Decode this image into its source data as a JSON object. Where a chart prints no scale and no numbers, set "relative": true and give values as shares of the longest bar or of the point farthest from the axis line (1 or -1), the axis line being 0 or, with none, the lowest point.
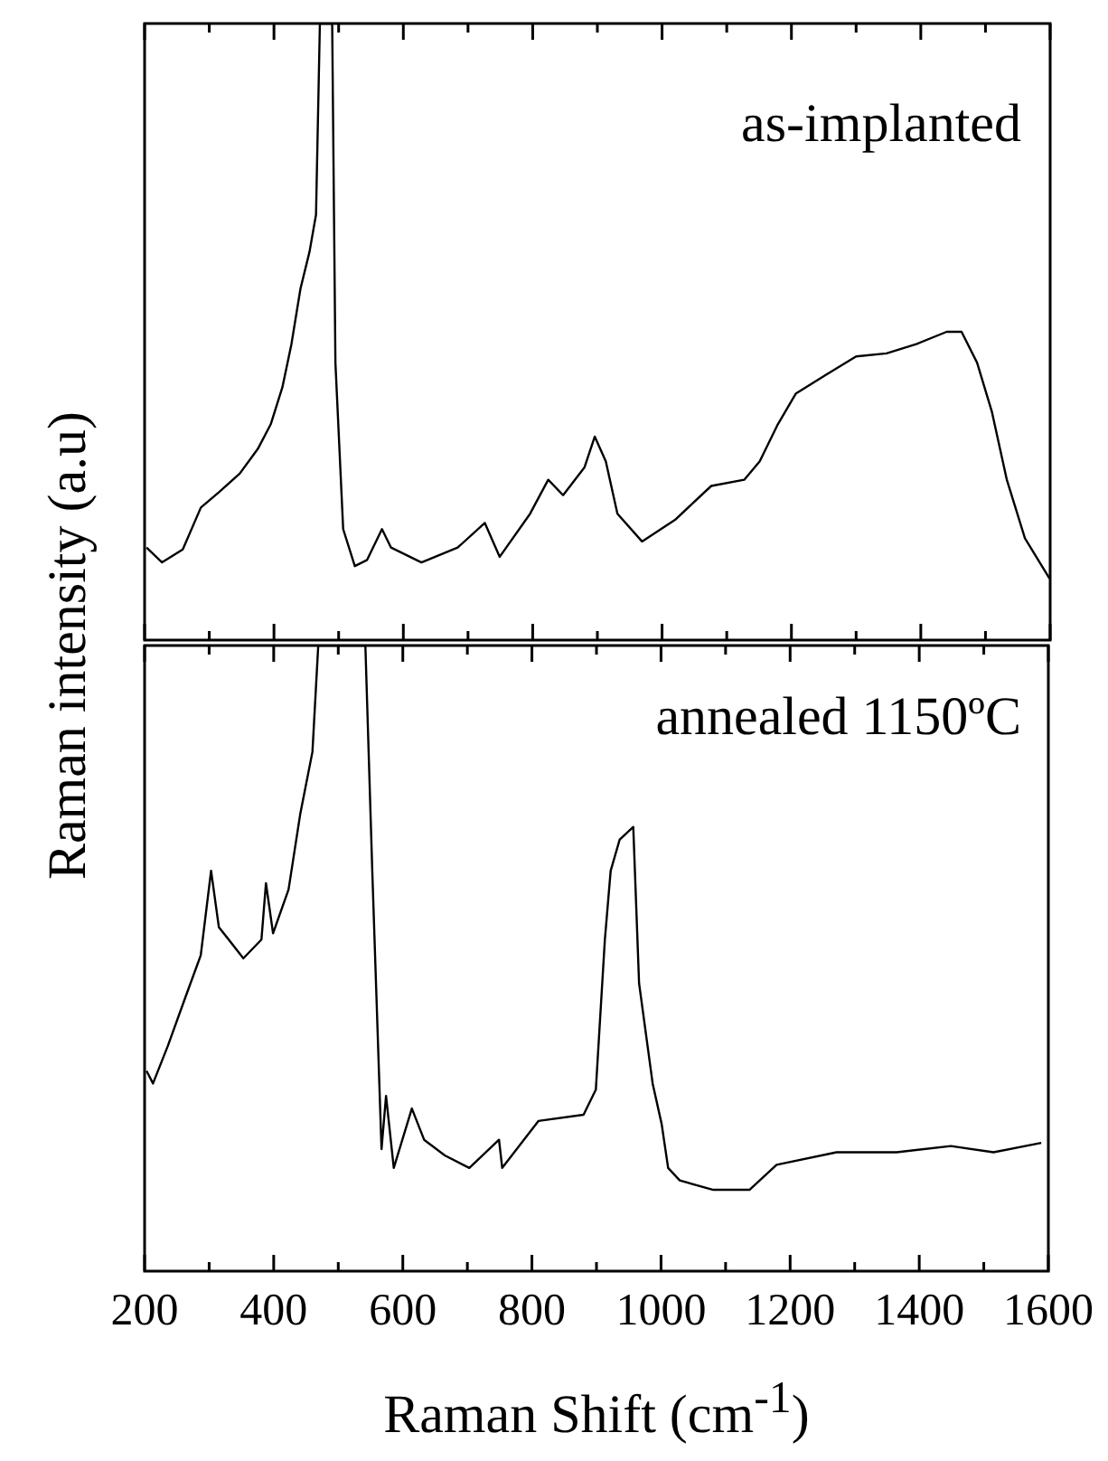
{
  "chart_data": [
    {
      "type": "line",
      "relative": true,
      "ylabel": "Raman intensity (a.u)",
      "annotations": [
        "as-implanted"
      ],
      "tick_labels": false,
      "grid": false,
      "legend": false,
      "marker": "none",
      "xlim": [
        200,
        1600
      ],
      "xticks": [
        200,
        {
          "value": 300,
          "label": null
        },
        400,
        {
          "value": 500,
          "label": null
        },
        600,
        {
          "value": 700,
          "label": null
        },
        800,
        {
          "value": 900,
          "label": null
        },
        1000,
        {
          "value": 1100,
          "label": null
        },
        1200,
        {
          "value": 1300,
          "label": null
        },
        1400,
        {
          "value": 1500,
          "label": null
        },
        1600
      ],
      "series": [
        {
          "color": "#000000",
          "x": [
            203,
            227,
            259,
            287,
            315,
            347,
            375,
            395,
            413,
            427,
            441,
            455,
            465,
            471,
            490,
            495,
            507,
            525,
            544,
            567,
            581,
            628,
            684,
            726,
            749,
            796,
            824,
            847,
            880,
            896,
            913,
            931,
            969,
            1020,
            1076,
            1127,
            1151,
            1179,
            1207,
            1253,
            1300,
            1347,
            1393,
            1440,
            1463,
            1487,
            1510,
            1533,
            1561,
            1599
          ],
          "values": [
            0.15,
            0.126,
            0.147,
            0.215,
            0.24,
            0.27,
            0.31,
            0.35,
            0.41,
            0.48,
            0.57,
            0.63,
            0.69,
            1,
            1,
            0.45,
            0.18,
            0.12,
            0.13,
            0.18,
            0.15,
            0.126,
            0.15,
            0.19,
            0.135,
            0.205,
            0.26,
            0.235,
            0.28,
            0.33,
            0.29,
            0.205,
            0.16,
            0.195,
            0.25,
            0.26,
            0.29,
            0.35,
            0.4,
            0.43,
            0.46,
            0.465,
            0.48,
            0.5,
            0.5,
            0.45,
            0.37,
            0.26,
            0.165,
            0.1
          ]
        }
      ]
    },
    {
      "type": "line",
      "relative": true,
      "xlabel": "Raman Shift (cm$^{-1}$)",
      "annotations": [
        "annealed 1150ºC"
      ],
      "tick_labels": "x",
      "grid": false,
      "legend": false,
      "marker": "none",
      "xlim": [
        200,
        1600
      ],
      "xticks": [
        200,
        {
          "value": 300,
          "label": null
        },
        400,
        {
          "value": 500,
          "label": null
        },
        600,
        {
          "value": 700,
          "label": null
        },
        800,
        {
          "value": 900,
          "label": null
        },
        1000,
        {
          "value": 1100,
          "label": null
        },
        1200,
        {
          "value": 1300,
          "label": null
        },
        1400,
        {
          "value": 1500,
          "label": null
        },
        1600
      ],
      "series": [
        {
          "color": "#000000",
          "x": [
            203,
            213,
            236,
            264,
            287,
            303,
            315,
            353,
            381,
            388,
            399,
            423,
            441,
            460,
            469,
            542,
            553,
            567,
            574,
            586,
            614,
            633,
            665,
            703,
            749,
            754,
            810,
            880,
            899,
            913,
            922,
            936,
            957,
            966,
            987,
            1001,
            1011,
            1029,
            1081,
            1137,
            1179,
            1272,
            1365,
            1449,
            1515,
            1589
          ],
          "values": [
            0.32,
            0.3,
            0.36,
            0.44,
            0.505,
            0.64,
            0.55,
            0.5,
            0.53,
            0.62,
            0.54,
            0.61,
            0.73,
            0.83,
            1,
            1,
            0.63,
            0.195,
            0.28,
            0.165,
            0.26,
            0.21,
            0.185,
            0.165,
            0.21,
            0.165,
            0.24,
            0.25,
            0.29,
            0.53,
            0.64,
            0.69,
            0.71,
            0.46,
            0.3,
            0.235,
            0.165,
            0.145,
            0.13,
            0.13,
            0.17,
            0.19,
            0.19,
            0.2,
            0.19,
            0.205
          ]
        }
      ]
    }
  ]
}
